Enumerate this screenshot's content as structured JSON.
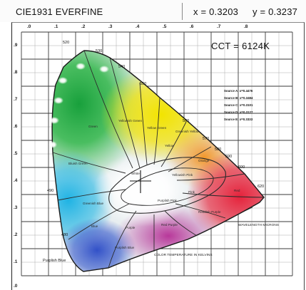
{
  "titlebar": {
    "title": "CIE1931  EVERFINE",
    "x_readout": "x = 0.3203",
    "y_readout": "y  = 0.3237"
  },
  "readout": {
    "cct": "CCT  =  6124K"
  },
  "diagram": {
    "x_ticks": [
      ".0",
      ".1",
      ".2",
      ".3",
      ".4",
      ".5",
      ".6",
      ".7",
      ".8"
    ],
    "y_ticks": [
      ".9",
      ".8",
      ".7",
      ".6",
      ".5",
      ".4",
      ".3",
      ".2",
      ".1",
      ".0"
    ],
    "wavelength_labels": [
      "520",
      "530",
      "540",
      "550",
      "560",
      "570",
      "580",
      "590",
      "600",
      "620",
      "490",
      "480"
    ],
    "region_labels": [
      "Green",
      "Yellowish Green",
      "Yellow Green",
      "Greenish Yellow",
      "Yellow",
      "Orange",
      "Yellowish Pink",
      "Pink",
      "Red",
      "Purplish Pink",
      "Reddish Purple",
      "Purple",
      "Bluish Green",
      "Greenish Blue",
      "Blue",
      "Purplish Blue",
      "Red Purple",
      "White"
    ],
    "source_legend": [
      "Source A: x=0.4476",
      "Source B: x=0.3484",
      "Source C: x=0.3101",
      "Source D: x=0.3127",
      "Source E: x=0.3333"
    ],
    "annotations": {
      "wavelength": "WAVELENGTH MICRONS",
      "color_temperature": "COLOR TEMPERATURE IN KELVINS",
      "purplish_blue": "Purplish Blue"
    },
    "colors": {
      "accent": "#111111",
      "background": "#ffffff"
    }
  }
}
